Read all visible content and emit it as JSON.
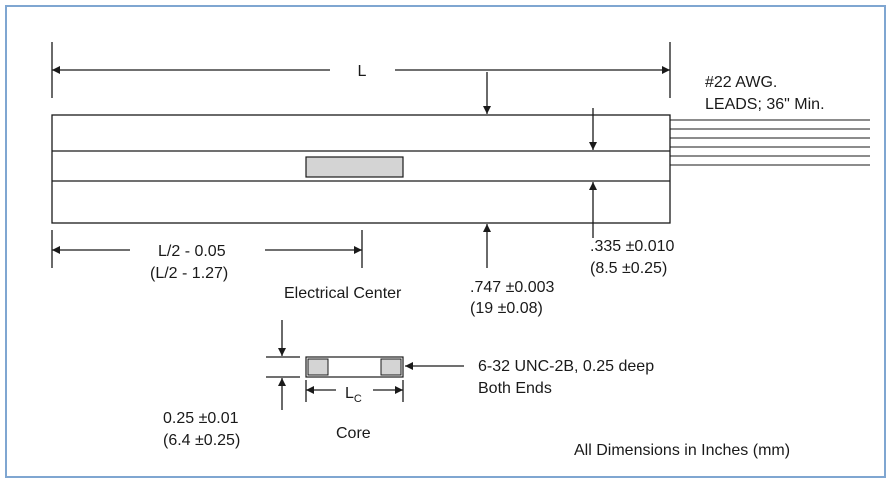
{
  "colors": {
    "background": "#ffffff",
    "frame": "#7fa6d1",
    "line": "#1a1a1a",
    "core_fill": "#d4d4d4"
  },
  "labels": {
    "length": "L",
    "leads_line1": "#22 AWG.",
    "leads_line2": "LEADS; 36\" Min.",
    "half_length_in": "L/2 - 0.05",
    "half_length_mm": "(L/2 - 1.27)",
    "electrical_center": "Electrical Center",
    "body_dia_in": ".747 ±0.003",
    "body_dia_mm": "(19 ±0.08)",
    "bore_in": ".335 ±0.010",
    "bore_mm": "(8.5 ±0.25)",
    "thread_line1": "6-32 UNC-2B, 0.25 deep",
    "thread_line2": "Both Ends",
    "core_length_main": "L",
    "core_length_sub": "C",
    "core_dia_in": "0.25 ±0.01",
    "core_dia_mm": "(6.4 ±0.25)",
    "core": "Core",
    "units_note": "All Dimensions in Inches (mm)"
  }
}
